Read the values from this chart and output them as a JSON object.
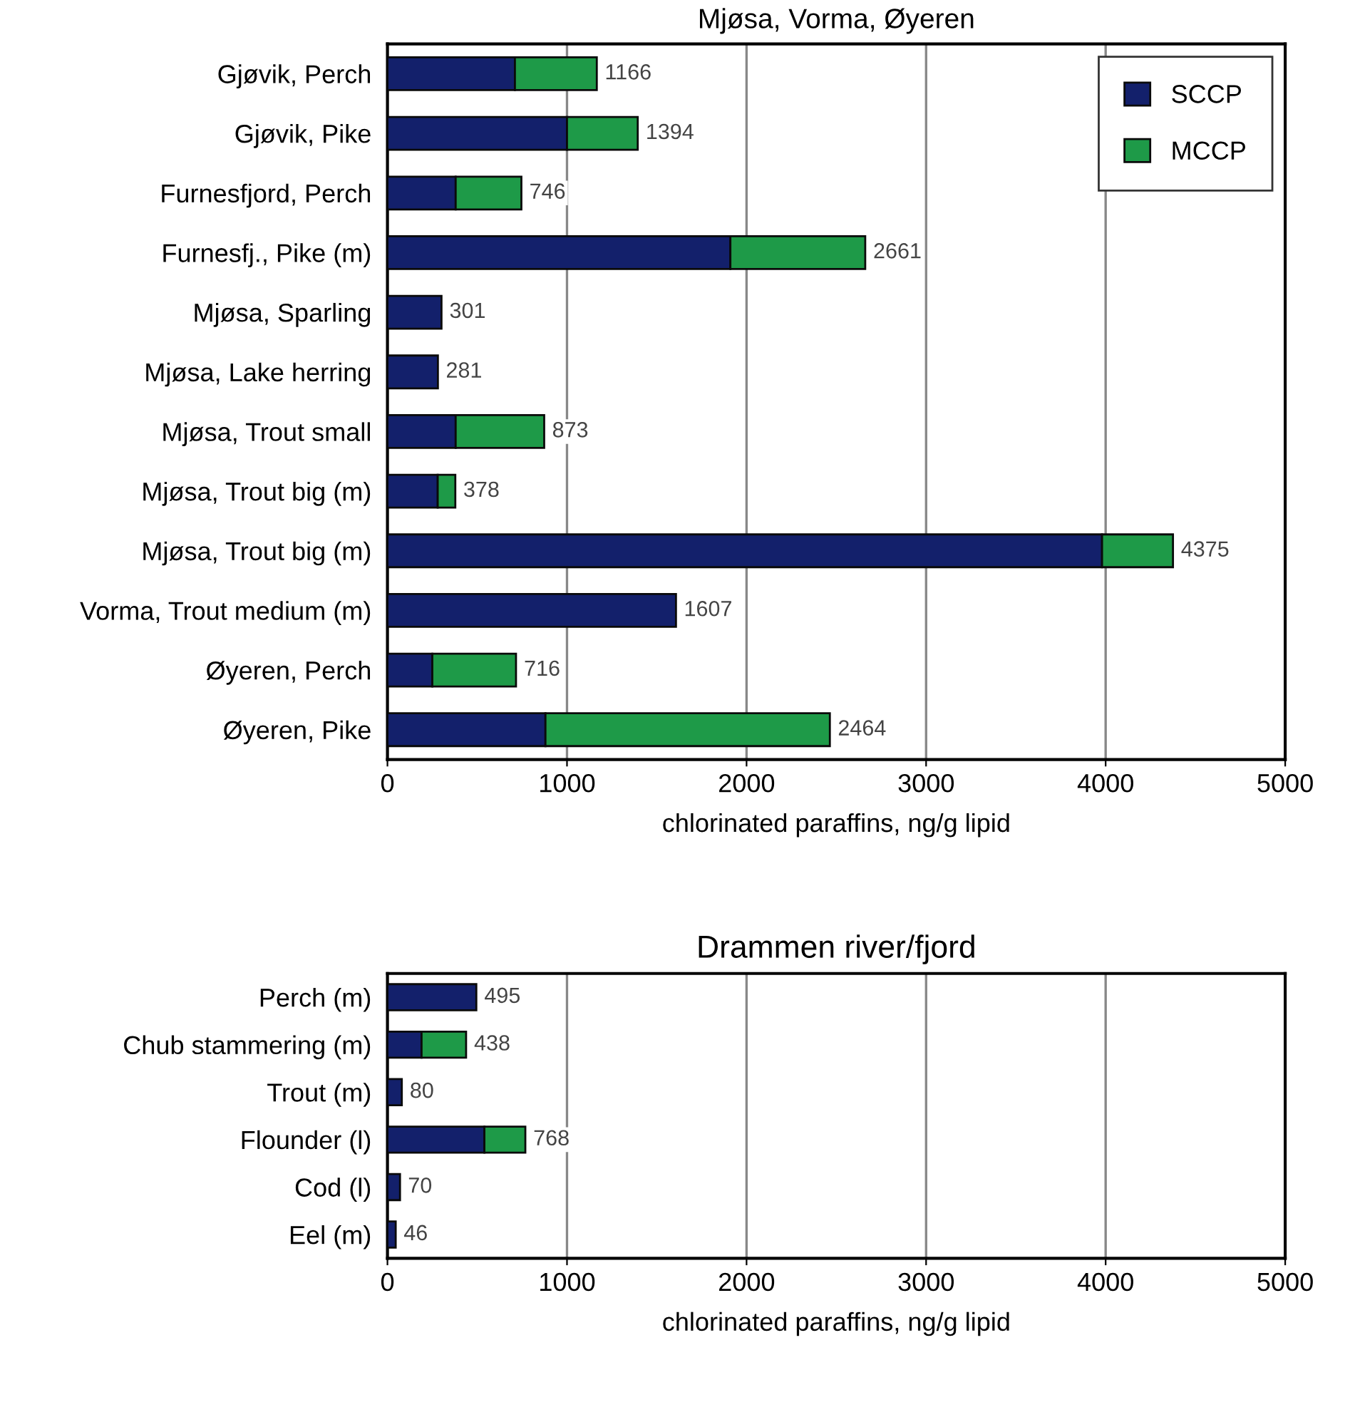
{
  "chart_data": [
    {
      "type": "bar",
      "orientation": "horizontal",
      "stacked": true,
      "title": "Mjøsa, Vorma, Øyeren",
      "xlabel": "chlorinated paraffins, ng/g lipid",
      "categories": [
        "Gjøvik, Perch",
        "Gjøvik, Pike",
        "Furnesfjord, Perch",
        "Furnesfj., Pike (m)",
        "Mjøsa, Sparling",
        "Mjøsa, Lake herring",
        "Mjøsa, Trout small",
        "Mjøsa, Trout big (m)",
        "Mjøsa, Trout big (m)",
        "Vorma, Trout medium (m)",
        "Øyeren, Perch",
        "Øyeren, Pike"
      ],
      "series": [
        {
          "name": "SCCP",
          "color": "#13206b",
          "values": [
            710,
            1000,
            380,
            1910,
            301,
            281,
            380,
            280,
            3980,
            1607,
            250,
            880
          ]
        },
        {
          "name": "MCCP",
          "color": "#1e9a48",
          "values": [
            456,
            394,
            366,
            751,
            null,
            null,
            493,
            98,
            395,
            null,
            466,
            1584
          ]
        }
      ],
      "totals": [
        "1166",
        "1394",
        "746",
        "2661",
        "301",
        "281",
        "873",
        "378",
        "4375",
        "1607",
        "716",
        "2464"
      ],
      "xlim": [
        0,
        5000
      ],
      "xticks": [
        0,
        1000,
        2000,
        3000,
        4000,
        5000
      ],
      "grid": "x",
      "legend": "top right"
    },
    {
      "type": "bar",
      "orientation": "horizontal",
      "stacked": true,
      "title": "Drammen river/fjord",
      "xlabel": "chlorinated paraffins, ng/g lipid",
      "categories": [
        "Perch (m)",
        "Chub stammering (m)",
        "Trout (m)",
        "Flounder (l)",
        "Cod (l)",
        "Eel (m)"
      ],
      "series": [
        {
          "color": "#13206b",
          "values": [
            495,
            190,
            80,
            540,
            70,
            46
          ]
        },
        {
          "color": "#1e9a48",
          "values": [
            null,
            248,
            null,
            228,
            null,
            null
          ]
        }
      ],
      "totals": [
        "495",
        "438",
        "80",
        "768",
        "70",
        "46"
      ],
      "xlim": [
        0,
        5000
      ],
      "xticks": [
        0,
        1000,
        2000,
        3000,
        4000,
        5000
      ],
      "grid": "x"
    }
  ]
}
